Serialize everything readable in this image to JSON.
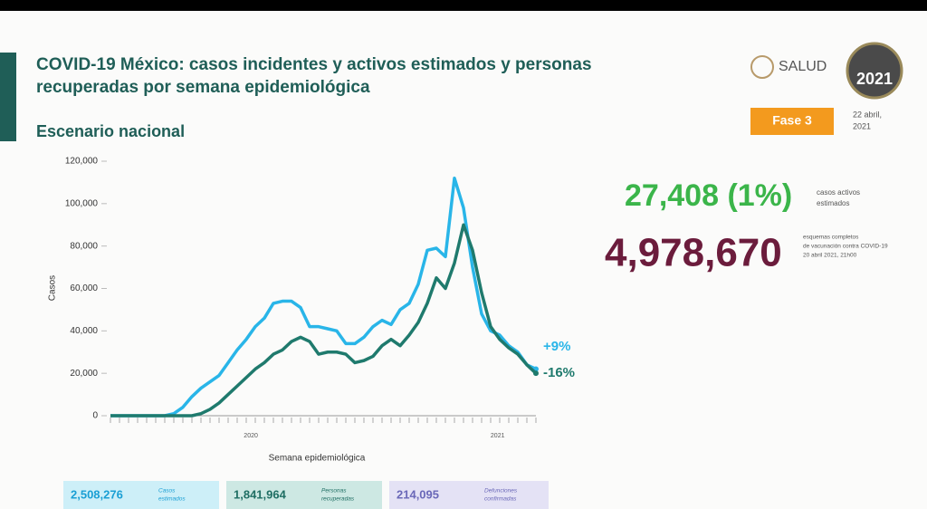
{
  "slide": {
    "title": [
      "COVID-19 México: casos incidentes y activos estimados y personas",
      "recuperadas por semana epidemiológica"
    ],
    "subtitle": "Escenario nacional",
    "agency": "SALUD",
    "logo_year": "2021",
    "phase": "Fase 3",
    "date": [
      "22 abril,",
      "2021"
    ],
    "active": {
      "value": "27,408 (1%)",
      "label": [
        "casos activos",
        "estimados"
      ]
    },
    "vaccination": {
      "value": "4,978,670",
      "label": [
        "esquemas completos",
        "de vacunación contra COVID-19",
        "20 abril 2021, 21h00"
      ]
    },
    "summary": [
      {
        "value": "2,508,276",
        "label": [
          "Casos",
          "estimados"
        ],
        "color": "#cdeff8",
        "text": "#1a9fd4"
      },
      {
        "value": "1,841,964",
        "label": [
          "Personas",
          "recuperadas"
        ],
        "color": "#cde8e3",
        "text": "#1f6e63"
      },
      {
        "value": "214,095",
        "label": [
          "Defunciones",
          "confirmadas"
        ],
        "color": "#e4e2f5",
        "text": "#6a68b8"
      }
    ]
  },
  "chart_data": {
    "type": "line",
    "xlabel": "Semana epidemiológica",
    "ylabel": "Casos",
    "year_labels": [
      "2020",
      "2021"
    ],
    "categories": [
      null,
      null,
      null,
      null,
      null,
      null,
      null,
      null,
      null,
      null,
      null,
      null,
      null,
      null,
      null,
      null,
      null,
      null,
      null,
      null,
      null,
      null,
      null,
      null,
      null,
      null,
      null,
      null,
      null,
      null,
      null,
      null,
      null,
      null,
      null,
      null,
      null,
      null,
      null,
      null,
      null,
      null,
      null,
      null,
      null,
      null,
      null,
      null
    ],
    "ylim": [
      0,
      120000
    ],
    "yticks": [
      0,
      {
        "value": 20000,
        "label": "20,000"
      },
      {
        "value": 40000,
        "label": "40,000"
      },
      {
        "value": 60000,
        "label": "60,000"
      },
      {
        "value": 80000,
        "label": "80,000"
      },
      {
        "value": 100000,
        "label": "100,000"
      },
      {
        "value": 120000,
        "label": "120,000"
      }
    ],
    "series": [
      {
        "color": "#29b5e8",
        "change": "+9%",
        "values": [
          0,
          0,
          0,
          0,
          0,
          0,
          0,
          1000,
          4000,
          9000,
          13000,
          16000,
          19000,
          25000,
          31000,
          36000,
          42000,
          46000,
          53000,
          54000,
          54000,
          51000,
          42000,
          42000,
          41000,
          40000,
          34000,
          34000,
          37000,
          42000,
          45000,
          43000,
          50000,
          53000,
          62000,
          78000,
          79000,
          75000,
          112000,
          98000,
          70000,
          48000,
          40000,
          38000,
          33000,
          30000,
          24000,
          22000
        ]
      },
      {
        "color": "#1f7a6d",
        "change": "-16%",
        "values": [
          0,
          0,
          0,
          0,
          0,
          0,
          0,
          0,
          0,
          0,
          1000,
          3000,
          6000,
          10000,
          14000,
          18000,
          22000,
          25000,
          29000,
          31000,
          35000,
          37000,
          35000,
          29000,
          30000,
          30000,
          29000,
          25000,
          26000,
          28000,
          33000,
          36000,
          33000,
          38000,
          44000,
          53000,
          65000,
          60000,
          72000,
          90000,
          78000,
          58000,
          42000,
          36000,
          32000,
          29000,
          24000,
          20000
        ]
      }
    ]
  }
}
